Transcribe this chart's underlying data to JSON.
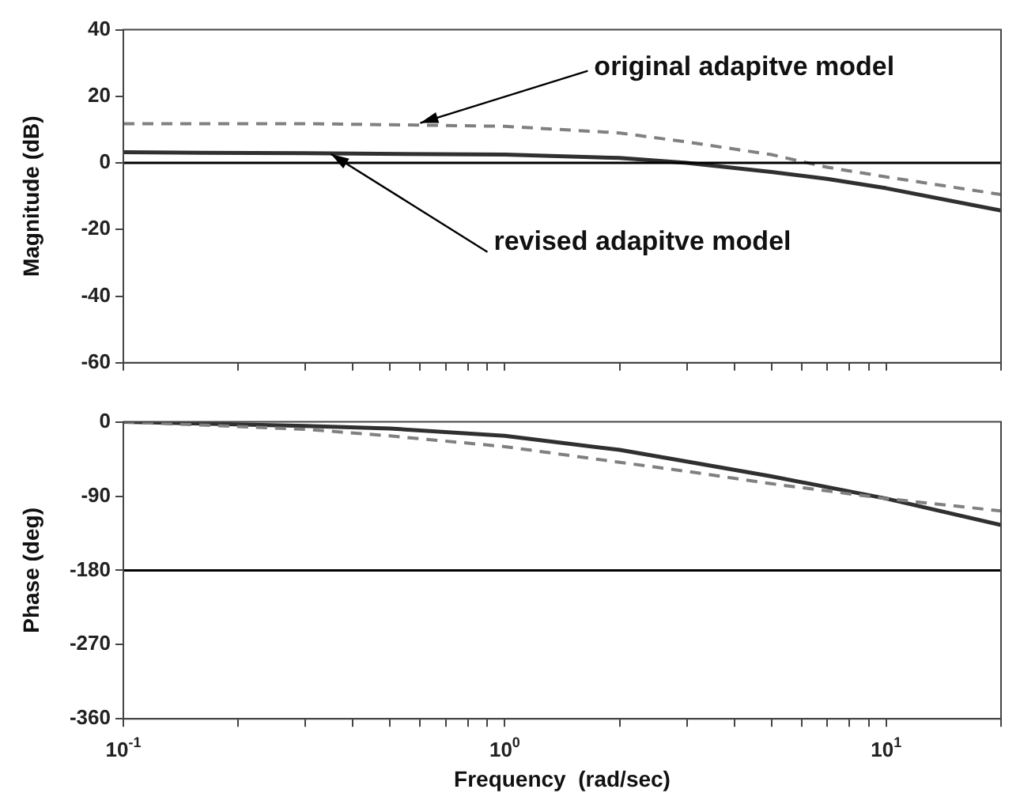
{
  "chart_data": [
    {
      "type": "line",
      "ylabel": "Magnitude (dB)",
      "x": [
        0.1,
        0.3,
        1,
        2,
        3,
        5,
        7,
        10,
        20
      ],
      "series": [
        {
          "color": "#808080",
          "line_style": "dashed",
          "values": [
            11.8,
            11.8,
            11,
            9,
            6.3,
            2.5,
            -1.3,
            -4.2,
            -9.5
          ]
        },
        {
          "color": "#303030",
          "line_style": "solid",
          "values": [
            3.2,
            2.9,
            2.5,
            1.5,
            0,
            -2.7,
            -4.8,
            -7.6,
            -14.3
          ]
        }
      ],
      "xlim": [
        0.1,
        20
      ],
      "ylim": [
        -60,
        40
      ],
      "yticks": [
        -60,
        -40,
        -20,
        0,
        20,
        40
      ],
      "xticks": [
        {
          "value": 0.1,
          "label": null
        },
        {
          "value": 0.2,
          "label": null
        },
        {
          "value": 0.3,
          "label": null
        },
        {
          "value": 0.4,
          "label": null
        },
        {
          "value": 0.5,
          "label": null
        },
        {
          "value": 0.6,
          "label": null
        },
        {
          "value": 0.7,
          "label": null
        },
        {
          "value": 0.8,
          "label": null
        },
        {
          "value": 0.9,
          "label": null
        },
        {
          "value": 1,
          "label": null
        },
        {
          "value": 2,
          "label": null
        },
        {
          "value": 3,
          "label": null
        },
        {
          "value": 4,
          "label": null
        },
        {
          "value": 5,
          "label": null
        },
        {
          "value": 6,
          "label": null
        },
        {
          "value": 7,
          "label": null
        },
        {
          "value": 8,
          "label": null
        },
        {
          "value": 9,
          "label": null
        },
        {
          "value": 10,
          "label": null
        },
        {
          "value": 20,
          "label": null
        }
      ],
      "log": "x",
      "grid": false,
      "legend": false,
      "tick_labels": "y",
      "ref_lines": [
        {
          "axis": "y",
          "value": 0,
          "color": "#000000"
        }
      ],
      "annotations": [
        {
          "text": "original adapitve model",
          "x": 0.6,
          "y": 12
        },
        {
          "text": "revised adapitve model",
          "x": 0.35,
          "y": 2.7
        }
      ]
    },
    {
      "type": "line",
      "ylabel": "Phase (deg)",
      "xlabel": "Frequency  (rad/sec)",
      "x": [
        0.1,
        0.3,
        0.5,
        1,
        2,
        3,
        5,
        10,
        20
      ],
      "series": [
        {
          "color": "#808080",
          "line_style": "dashed",
          "values": [
            0,
            -9,
            -17,
            -30,
            -49,
            -60,
            -75,
            -93,
            -108
          ]
        },
        {
          "color": "#303030",
          "line_style": "solid",
          "values": [
            0,
            -5,
            -8,
            -17,
            -34,
            -48,
            -66,
            -93,
            -125
          ]
        }
      ],
      "xlim": [
        0.1,
        20
      ],
      "ylim": [
        -360,
        0
      ],
      "yticks": [
        -360,
        -270,
        -180,
        -90,
        0
      ],
      "xticks": [
        {
          "value": 0.1,
          "label": "10$^{-1}$"
        },
        {
          "value": 0.2,
          "label": null
        },
        {
          "value": 0.3,
          "label": null
        },
        {
          "value": 0.4,
          "label": null
        },
        {
          "value": 0.5,
          "label": null
        },
        {
          "value": 0.6,
          "label": null
        },
        {
          "value": 0.7,
          "label": null
        },
        {
          "value": 0.8,
          "label": null
        },
        {
          "value": 0.9,
          "label": null
        },
        {
          "value": 1,
          "label": "10$^{0}$"
        },
        {
          "value": 2,
          "label": null
        },
        {
          "value": 3,
          "label": null
        },
        {
          "value": 4,
          "label": null
        },
        {
          "value": 5,
          "label": null
        },
        {
          "value": 6,
          "label": null
        },
        {
          "value": 7,
          "label": null
        },
        {
          "value": 8,
          "label": null
        },
        {
          "value": 9,
          "label": null
        },
        {
          "value": 10,
          "label": "10$^{1}$"
        },
        {
          "value": 20,
          "label": null
        }
      ],
      "log": "x",
      "grid": false,
      "legend": false,
      "ref_lines": [
        {
          "axis": "y",
          "value": -180,
          "color": "#000000"
        }
      ]
    }
  ]
}
